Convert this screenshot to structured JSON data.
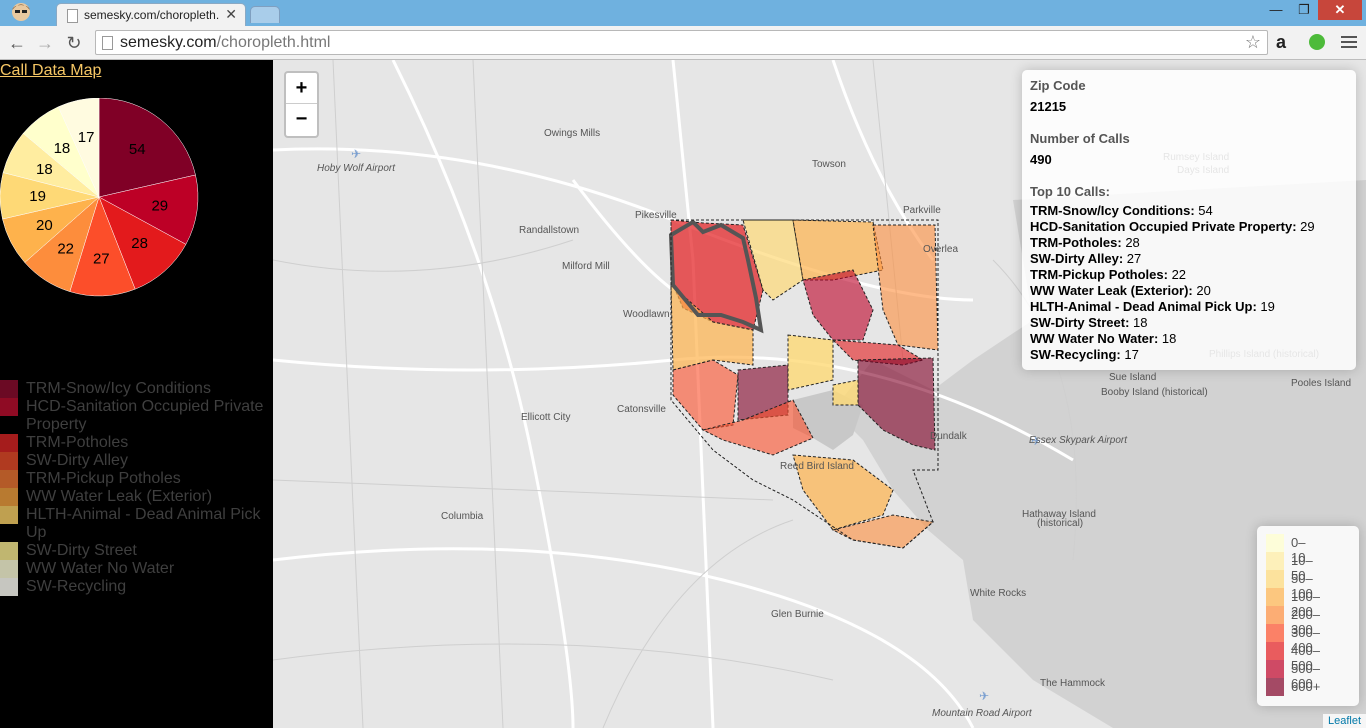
{
  "browser": {
    "tab_title": "semesky.com/choropleth.",
    "url_host": "semesky.com",
    "url_path": "/choropleth.html",
    "win_min": "—",
    "win_max": "❐",
    "win_close": "✕"
  },
  "page": {
    "link_label": "Call Data Map"
  },
  "chart_data": {
    "type": "pie",
    "values": [
      54,
      29,
      28,
      27,
      22,
      20,
      19,
      18,
      18,
      17
    ],
    "categories": [
      "TRM-Snow/Icy Conditions",
      "HCD-Sanitation Occupied Private Property",
      "TRM-Potholes",
      "SW-Dirty Alley",
      "TRM-Pickup Potholes",
      "WW Water Leak (Exterior)",
      "HLTH-Animal - Dead Animal Pick Up",
      "SW-Dirty Street",
      "WW Water No Water",
      "SW-Recycling"
    ],
    "colors": [
      "#800026",
      "#bd0026",
      "#e31a1c",
      "#fc4e2a",
      "#fd8d3c",
      "#feb24c",
      "#fed976",
      "#ffeda0",
      "#ffffcc",
      "#fffbe0"
    ]
  },
  "sidebar_legend": [
    {
      "label": "TRM-Snow/Icy Conditions",
      "color": "#6b0a24"
    },
    {
      "label": "HCD-Sanitation Occupied Private Property",
      "color": "#8f0b24"
    },
    {
      "label": "TRM-Potholes",
      "color": "#a51c1c"
    },
    {
      "label": "SW-Dirty Alley",
      "color": "#b03a20"
    },
    {
      "label": "TRM-Pickup Potholes",
      "color": "#b45a28"
    },
    {
      "label": "WW Water Leak (Exterior)",
      "color": "#b87a30"
    },
    {
      "label": "HLTH-Animal - Dead Animal Pick Up",
      "color": "#bfa050"
    },
    {
      "label": "SW-Dirty Street",
      "color": "#c0b670"
    },
    {
      "label": "WW Water No Water",
      "color": "#c4c4a8"
    },
    {
      "label": "SW-Recycling",
      "color": "#c6c6c0"
    }
  ],
  "map": {
    "zoom_in": "+",
    "zoom_out": "−",
    "places": [
      {
        "name": "Owings Mills"
      },
      {
        "name": "Hoby Wolf Airport"
      },
      {
        "name": "Towson"
      },
      {
        "name": "Rumsey Island"
      },
      {
        "name": "Days Island"
      },
      {
        "name": "Randallstown"
      },
      {
        "name": "Pikesville"
      },
      {
        "name": "Parkville"
      },
      {
        "name": "Overlea"
      },
      {
        "name": "Milford Mill"
      },
      {
        "name": "Woodlawn"
      },
      {
        "name": "Catonsville"
      },
      {
        "name": "Ellicott City"
      },
      {
        "name": "Sue Island"
      },
      {
        "name": "Booby Island (historical)"
      },
      {
        "name": "Pooles Island"
      },
      {
        "name": "Phillips Island (historical)"
      },
      {
        "name": "Essex Skypark Airport"
      },
      {
        "name": "Dundalk"
      },
      {
        "name": "Reed Bird Island"
      },
      {
        "name": "Columbia"
      },
      {
        "name": "Hathaway Island"
      },
      {
        "name": "(historical)"
      },
      {
        "name": "White Rocks"
      },
      {
        "name": "Glen Burnie"
      },
      {
        "name": "The Hammock"
      },
      {
        "name": "Mountain Road Airport"
      }
    ],
    "attribution": "Leaflet"
  },
  "info_panel": {
    "zip_label": "Zip Code",
    "zip_value": "21215",
    "calls_label": "Number of Calls",
    "calls_value": "490",
    "top_label": "Top 10 Calls:",
    "top_calls": [
      {
        "name": "TRM-Snow/Icy Conditions:",
        "count": "54"
      },
      {
        "name": "HCD-Sanitation Occupied Private Property:",
        "count": "29"
      },
      {
        "name": "TRM-Potholes:",
        "count": "28"
      },
      {
        "name": "SW-Dirty Alley:",
        "count": "27"
      },
      {
        "name": "TRM-Pickup Potholes:",
        "count": "22"
      },
      {
        "name": "WW Water Leak (Exterior):",
        "count": "20"
      },
      {
        "name": "HLTH-Animal - Dead Animal Pick Up:",
        "count": "19"
      },
      {
        "name": "SW-Dirty Street:",
        "count": "18"
      },
      {
        "name": "WW Water No Water:",
        "count": "18"
      },
      {
        "name": "SW-Recycling:",
        "count": "17"
      }
    ]
  },
  "map_legend": [
    {
      "label": "0–10",
      "color": "#ffffcc"
    },
    {
      "label": "10–50",
      "color": "#ffeda0"
    },
    {
      "label": "50–100",
      "color": "#fed976"
    },
    {
      "label": "100–200",
      "color": "#feb24c"
    },
    {
      "label": "200–300",
      "color": "#fd8d3c"
    },
    {
      "label": "300–400",
      "color": "#fc4e2a"
    },
    {
      "label": "400–500",
      "color": "#e31a1c"
    },
    {
      "label": "500–600",
      "color": "#bd0026"
    },
    {
      "label": "600+",
      "color": "#800026"
    }
  ]
}
